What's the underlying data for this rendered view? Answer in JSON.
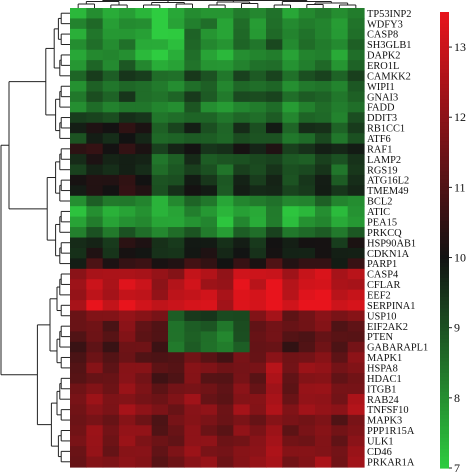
{
  "chart_data": {
    "type": "heatmap",
    "rows": [
      "TP53INP2",
      "WDFY3",
      "CASP8",
      "SH3GLB1",
      "DAPK2",
      "ERO1L",
      "CAMKK2",
      "WIPI1",
      "GNAI3",
      "FADD",
      "DDIT3",
      "RB1CC1",
      "ATF6",
      "RAF1",
      "LAMP2",
      "RGS19",
      "ATG16L2",
      "TMEM49",
      "BCL2",
      "ATIC",
      "PEA15",
      "PRKCQ",
      "HSP90AB1",
      "CDKN1A",
      "PARP1",
      "CASP4",
      "CFLAR",
      "EEF2",
      "SERPINA1",
      "USP10",
      "EIF2AK2",
      "PTEN",
      "GABARAPL1",
      "MAPK1",
      "HSPA8",
      "HDAC1",
      "ITGB1",
      "RAB24",
      "TNFSF10",
      "MAPK3",
      "PPP1R15A",
      "ULK1",
      "CD46",
      "PRKAR1A"
    ],
    "row_levels": [
      8.0,
      8.2,
      8.1,
      8.3,
      8.0,
      8.2,
      8.9,
      8.5,
      8.8,
      8.3,
      8.6,
      9.2,
      8.8,
      9.7,
      9.0,
      8.9,
      9.4,
      9.5,
      8.2,
      7.6,
      7.8,
      8.5,
      9.8,
      9.9,
      10.4,
      12.4,
      12.6,
      12.8,
      13.0,
      11.8,
      11.4,
      11.2,
      11.1,
      11.3,
      11.6,
      11.4,
      11.5,
      11.7,
      11.9,
      11.6,
      11.8,
      11.7,
      11.8,
      11.9
    ],
    "col_offsets": [
      -0.4,
      0.3,
      -0.2,
      0.5,
      0.1,
      -0.6,
      -0.3,
      0.4,
      0.0,
      -0.5,
      0.2,
      -0.1,
      0.6,
      -0.3,
      0.1,
      0.3,
      -0.4,
      0.2
    ],
    "block_adjust": [
      {
        "rows": [
          0,
          4
        ],
        "cols": [
          3,
          6
        ],
        "delta": -0.5
      },
      {
        "rows": [
          10,
          17
        ],
        "cols": [
          0,
          4
        ],
        "delta": 0.7
      },
      {
        "rows": [
          29,
          32
        ],
        "cols": [
          6,
          10
        ],
        "delta": -2.6
      },
      {
        "rows": [
          25,
          28
        ],
        "cols": [
          10,
          16
        ],
        "delta": 0.4
      },
      {
        "rows": [
          33,
          38
        ],
        "cols": [
          12,
          17
        ],
        "delta": 0.3
      }
    ],
    "colorbar": {
      "min": 7,
      "max": 13.5,
      "ticks": [
        7,
        8,
        9,
        10,
        11,
        12,
        13
      ]
    },
    "colors": {
      "low": "#2ecc40",
      "mid": "#121212",
      "high": "#e8141c"
    },
    "row_dendrogram": true,
    "col_dendrogram": true
  }
}
